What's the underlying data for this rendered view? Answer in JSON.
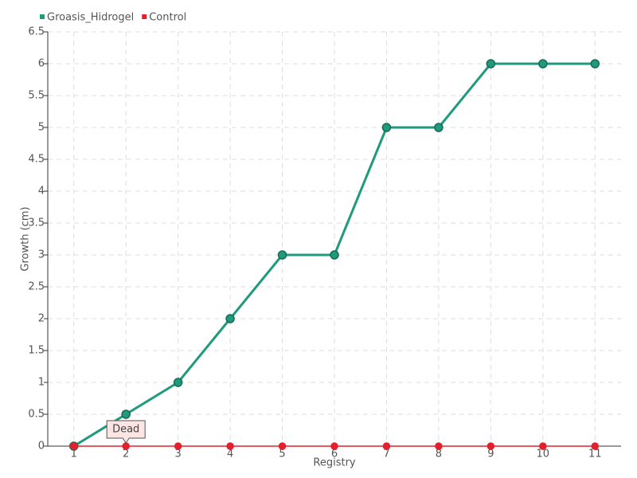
{
  "chart_data": {
    "type": "line",
    "x": [
      1,
      2,
      3,
      4,
      5,
      6,
      7,
      8,
      9,
      10,
      11
    ],
    "series": [
      {
        "name": "Groasis_Hidrogel",
        "color": "#1f9a7c",
        "values": [
          0,
          0.5,
          1,
          2,
          3,
          3,
          5,
          5,
          6,
          6,
          6
        ]
      },
      {
        "name": "Control",
        "color": "#e3202c",
        "values": [
          0,
          0,
          0,
          0,
          0,
          0,
          0,
          0,
          0,
          0,
          0
        ]
      }
    ],
    "xlabel": "Registry",
    "ylabel": "Growth (cm)",
    "xlim": [
      0.5,
      11.5
    ],
    "xticks": [
      1,
      2,
      3,
      4,
      5,
      6,
      7,
      8,
      9,
      10,
      11
    ],
    "ylim": [
      0,
      6.5
    ],
    "yticks": [
      0,
      0.5,
      1,
      1.5,
      2,
      2.5,
      3,
      3.5,
      4,
      4.5,
      5,
      5.5,
      6,
      6.5
    ],
    "grid": true,
    "legend": "top-left",
    "annotations": [
      {
        "text": "Dead",
        "x": 2,
        "y": 0
      }
    ]
  }
}
